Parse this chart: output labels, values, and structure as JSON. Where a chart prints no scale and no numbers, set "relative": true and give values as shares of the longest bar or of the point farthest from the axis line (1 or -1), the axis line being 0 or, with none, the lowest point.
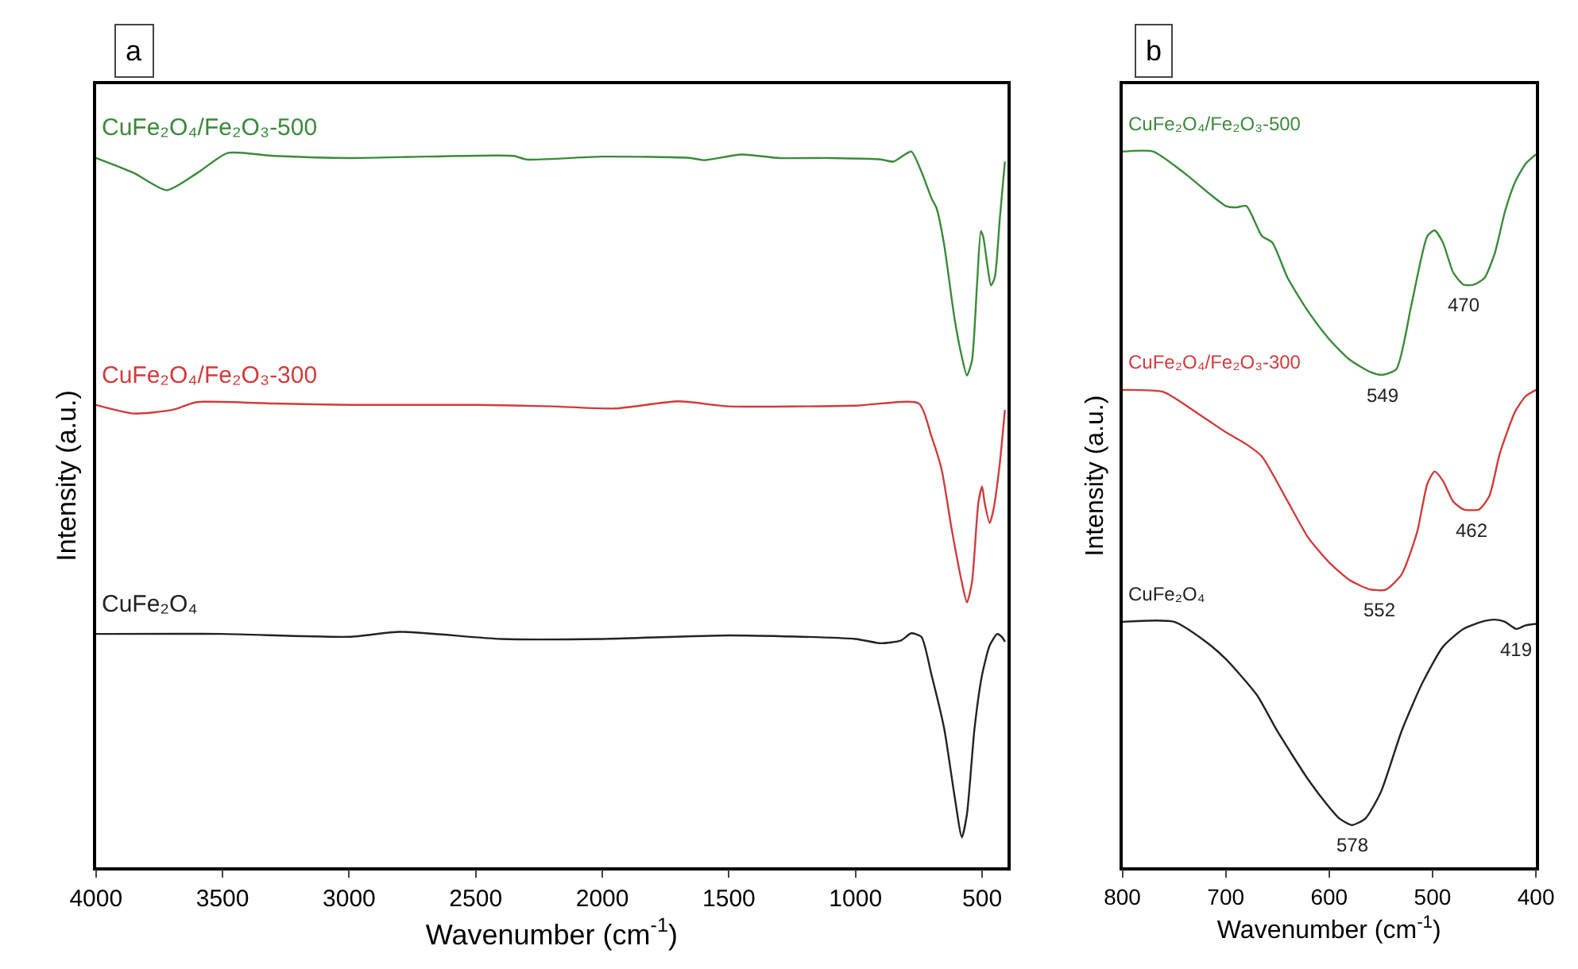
{
  "chart_data": [
    {
      "type": "line",
      "relative": true,
      "xlabel": "Wavenumber (cm$^{-1}$)",
      "ylabel": "Intensity (a.u.)",
      "xlim": [
        4000,
        400
      ],
      "xticks": [
        4000,
        3500,
        3000,
        2500,
        2000,
        1500,
        1000,
        500
      ],
      "marker": "none",
      "line_style": "solid",
      "annotations": [
        "a"
      ],
      "series": [
        {
          "name": "CuFe₂O₄/Fe₂O₃-500",
          "color": "#3a8a3a",
          "x": [
            4000,
            3850,
            3720,
            3600,
            3480,
            3300,
            3000,
            2700,
            2350,
            2300,
            2000,
            1650,
            1600,
            1450,
            1300,
            1100,
            900,
            850,
            780,
            740,
            700,
            680,
            650,
            610,
            580,
            560,
            540,
            520,
            505,
            495,
            480,
            465,
            450,
            430,
            410
          ],
          "values": [
            0.991,
            0.97,
            0.946,
            0.97,
            0.998,
            0.994,
            0.991,
            0.993,
            0.994,
            0.989,
            0.993,
            0.991,
            0.988,
            0.996,
            0.991,
            0.991,
            0.989,
            0.986,
            1.0,
            0.972,
            0.935,
            0.921,
            0.87,
            0.769,
            0.713,
            0.687,
            0.708,
            0.815,
            0.889,
            0.88,
            0.843,
            0.813,
            0.824,
            0.907,
            0.986
          ]
        },
        {
          "name": "CuFe₂O₄/Fe₂O₃-300",
          "color": "#d03c3c",
          "x": [
            4000,
            3850,
            3700,
            3600,
            3300,
            3000,
            2500,
            2200,
            1950,
            1700,
            1500,
            1000,
            750,
            700,
            660,
            620,
            580,
            560,
            540,
            515,
            500,
            490,
            470,
            455,
            430,
            410
          ],
          "values": [
            0.646,
            0.634,
            0.639,
            0.65,
            0.648,
            0.646,
            0.646,
            0.644,
            0.641,
            0.651,
            0.644,
            0.645,
            0.648,
            0.602,
            0.556,
            0.472,
            0.398,
            0.37,
            0.398,
            0.509,
            0.532,
            0.509,
            0.481,
            0.5,
            0.565,
            0.639
          ]
        },
        {
          "name": "CuFe₂O₄",
          "color": "#222222",
          "x": [
            4000,
            3500,
            3000,
            2800,
            2400,
            2000,
            1500,
            1000,
            900,
            820,
            780,
            740,
            700,
            650,
            610,
            580,
            560,
            530,
            500,
            470,
            440,
            420,
            410
          ],
          "values": [
            0.326,
            0.326,
            0.322,
            0.329,
            0.319,
            0.319,
            0.324,
            0.319,
            0.313,
            0.317,
            0.327,
            0.322,
            0.269,
            0.194,
            0.102,
            0.042,
            0.074,
            0.194,
            0.269,
            0.31,
            0.326,
            0.321,
            0.315
          ]
        }
      ]
    },
    {
      "type": "line",
      "relative": true,
      "xlabel": "Wavenumber (cm$^{-1}$)",
      "ylabel": "Intensity (a.u.)",
      "xlim": [
        800,
        400
      ],
      "xticks": [
        800,
        700,
        600,
        500,
        400
      ],
      "marker": "none",
      "line_style": "solid",
      "annotations": [
        "b",
        {
          "text": "549",
          "x": 549,
          "y": 0.688
        },
        {
          "text": "470",
          "x": 470,
          "y": 0.814
        },
        {
          "text": "552",
          "x": 552,
          "y": 0.388
        },
        {
          "text": "462",
          "x": 462,
          "y": 0.5
        },
        {
          "text": "578",
          "x": 578,
          "y": 0.059
        },
        {
          "text": "419",
          "x": 419,
          "y": 0.333
        }
      ],
      "series": [
        {
          "name": "CuFe₂O₄/Fe₂O₃-500",
          "color": "#3a8a3a",
          "x": [
            800,
            770,
            740,
            700,
            690,
            680,
            665,
            655,
            640,
            620,
            600,
            580,
            560,
            549,
            535,
            520,
            505,
            498,
            490,
            480,
            470,
            460,
            450,
            440,
            430,
            420,
            410,
            400
          ],
          "values": [
            1.0,
            1.0,
            0.97,
            0.924,
            0.922,
            0.924,
            0.882,
            0.873,
            0.823,
            0.776,
            0.738,
            0.709,
            0.692,
            0.688,
            0.696,
            0.789,
            0.882,
            0.89,
            0.873,
            0.831,
            0.814,
            0.814,
            0.823,
            0.857,
            0.916,
            0.958,
            0.983,
            0.996
          ]
        },
        {
          "name": "CuFe₂O₄/Fe₂O₃-300",
          "color": "#d03c3c",
          "x": [
            800,
            760,
            730,
            700,
            680,
            665,
            640,
            620,
            600,
            580,
            560,
            545,
            530,
            515,
            505,
            498,
            490,
            480,
            470,
            455,
            445,
            435,
            420,
            410,
            400
          ],
          "values": [
            0.667,
            0.664,
            0.637,
            0.608,
            0.591,
            0.574,
            0.511,
            0.46,
            0.426,
            0.401,
            0.388,
            0.388,
            0.409,
            0.468,
            0.536,
            0.553,
            0.54,
            0.511,
            0.5,
            0.5,
            0.519,
            0.578,
            0.637,
            0.658,
            0.667
          ]
        },
        {
          "name": "CuFe₂O₄",
          "color": "#222222",
          "x": [
            800,
            750,
            720,
            700,
            670,
            650,
            620,
            600,
            590,
            578,
            565,
            550,
            530,
            510,
            490,
            470,
            450,
            440,
            430,
            419,
            410,
            400
          ],
          "values": [
            0.343,
            0.343,
            0.316,
            0.291,
            0.241,
            0.19,
            0.122,
            0.084,
            0.068,
            0.059,
            0.068,
            0.105,
            0.19,
            0.257,
            0.308,
            0.333,
            0.344,
            0.346,
            0.343,
            0.333,
            0.338,
            0.34
          ]
        }
      ]
    }
  ]
}
